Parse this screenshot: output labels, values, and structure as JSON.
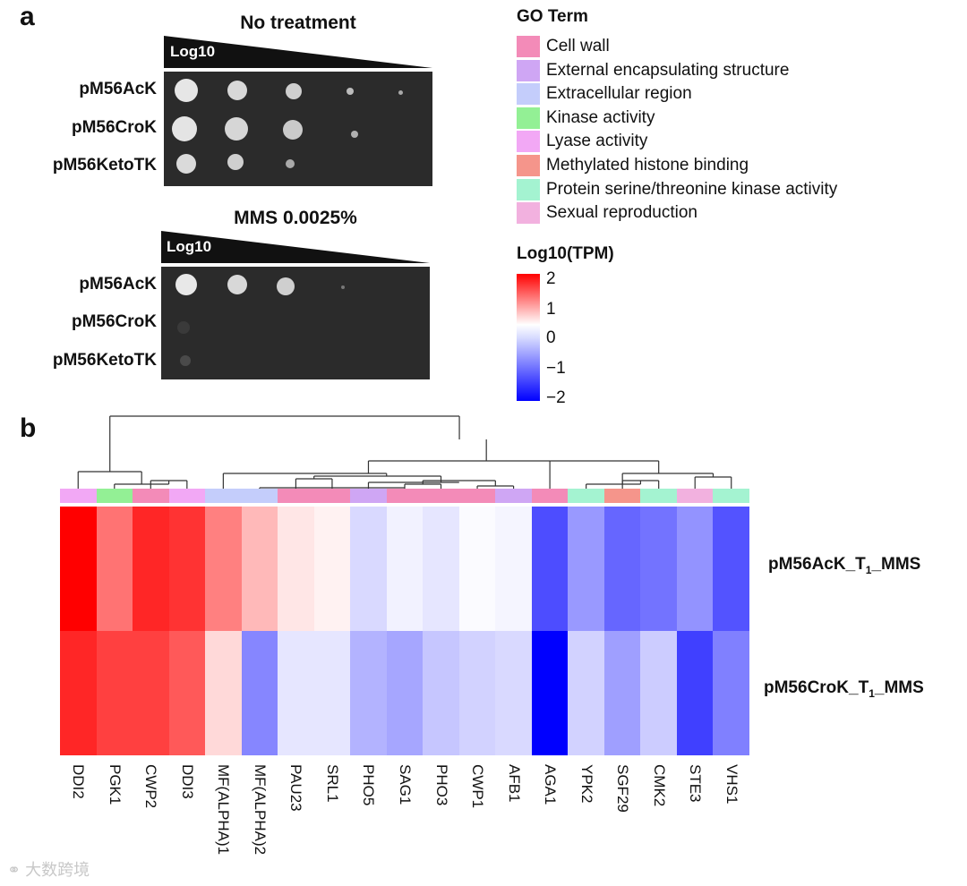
{
  "panel_a": {
    "letter": "a",
    "plates": [
      {
        "title": "No treatment",
        "wedge_label": "Log10",
        "strains": [
          "pM56AcK",
          "pM56CroK",
          "pM56KetoTK"
        ]
      },
      {
        "title": "MMS 0.0025%",
        "wedge_label": "Log10",
        "strains": [
          "pM56AcK",
          "pM56CroK",
          "pM56KetoTK"
        ]
      }
    ]
  },
  "go_legend": {
    "title": "GO Term",
    "items": [
      {
        "label": "Cell wall",
        "color": "#f38bb8"
      },
      {
        "label": "External encapsulating structure",
        "color": "#cfa6f4"
      },
      {
        "label": "Extracellular region",
        "color": "#c4cdfb"
      },
      {
        "label": "Kinase activity",
        "color": "#93f095"
      },
      {
        "label": "Lyase activity",
        "color": "#f2a8f5"
      },
      {
        "label": "Methylated histone binding",
        "color": "#f5958b"
      },
      {
        "label": "Protein serine/threonine kinase activity",
        "color": "#a4f3d1"
      },
      {
        "label": "Sexual reproduction",
        "color": "#f2b1df"
      }
    ]
  },
  "color_scale": {
    "title": "Log10(TPM)",
    "ticks": [
      "2",
      "1",
      "0",
      "−1",
      "−2"
    ],
    "min": -2,
    "max": 2,
    "colors": {
      "low": "#0000ff",
      "mid": "#ffffff",
      "high": "#ff0000"
    }
  },
  "panel_b": {
    "letter": "b",
    "chart_data": {
      "type": "heatmap",
      "genes": [
        "DDI2",
        "PGK1",
        "CWP2",
        "DDI3",
        "MF(ALPHA)1",
        "MF(ALPHA)2",
        "PAU23",
        "SRL1",
        "PHO5",
        "SAG1",
        "PHO3",
        "CWP1",
        "AFB1",
        "AGA1",
        "YPK2",
        "SGF29",
        "CMK2",
        "STE3",
        "VHS1"
      ],
      "go_annotation": [
        "Lyase activity",
        "Kinase activity",
        "Cell wall",
        "Lyase activity",
        "Extracellular region",
        "Extracellular region",
        "Cell wall",
        "Cell wall",
        "External encapsulating structure",
        "Cell wall",
        "Cell wall",
        "Cell wall",
        "External encapsulating structure",
        "Cell wall",
        "Protein serine/threonine kinase activity",
        "Methylated histone binding",
        "Protein serine/threonine kinase activity",
        "Sexual reproduction",
        "Protein serine/threonine kinase activity"
      ],
      "rows": [
        {
          "name_main": "pM56AcK_T",
          "name_sub": "1",
          "name_tail": "_MMS",
          "values": [
            2.0,
            1.1,
            1.7,
            1.6,
            1.0,
            0.55,
            0.2,
            0.1,
            -0.3,
            -0.1,
            -0.2,
            -0.03,
            -0.08,
            -1.4,
            -0.8,
            -1.2,
            -1.1,
            -0.85,
            -1.35
          ]
        },
        {
          "name_main": "pM56CroK_T",
          "name_sub": "1",
          "name_tail": "_MMS",
          "values": [
            1.7,
            1.5,
            1.5,
            1.3,
            0.3,
            -0.95,
            -0.2,
            -0.2,
            -0.6,
            -0.7,
            -0.45,
            -0.35,
            -0.3,
            -2.0,
            -0.35,
            -0.75,
            -0.4,
            -1.5,
            -1.0
          ]
        }
      ],
      "scale_min": -2,
      "scale_max": 2,
      "col_dendrogram": true
    }
  },
  "watermark": "大数跨境"
}
